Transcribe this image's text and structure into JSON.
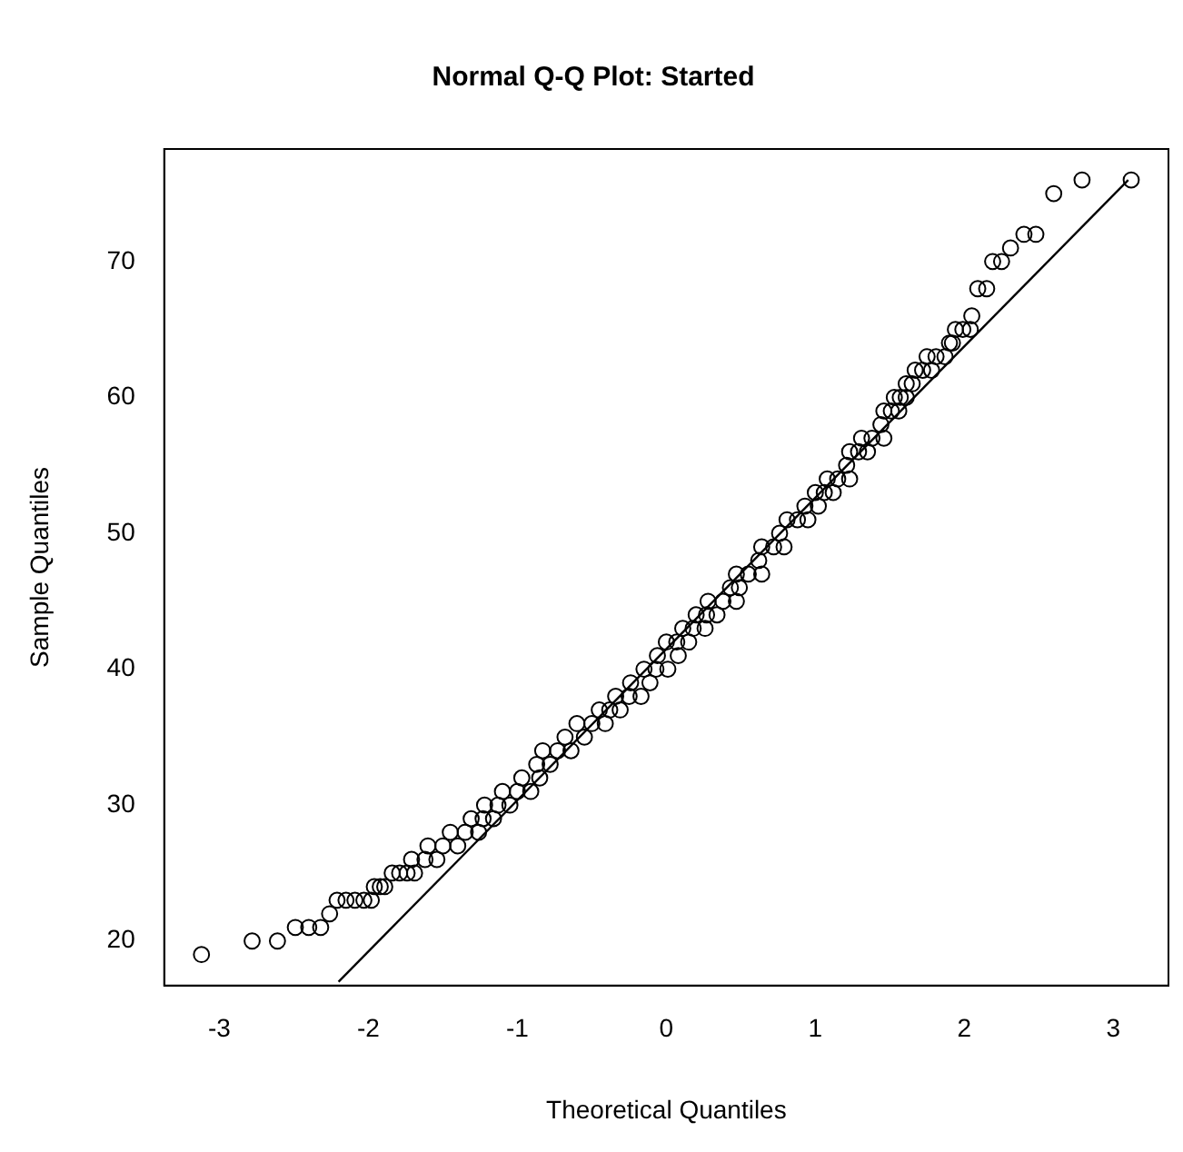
{
  "chart_data": {
    "type": "scatter",
    "title": "Normal Q-Q Plot: Started",
    "xlabel": "Theoretical Quantiles",
    "ylabel": "Sample Quantiles",
    "xlim": [
      -3.37,
      3.37
    ],
    "ylim": [
      16.72,
      78.28
    ],
    "xticks": [
      -3,
      -2,
      -1,
      0,
      1,
      2,
      3
    ],
    "yticks": [
      20,
      30,
      40,
      50,
      60,
      70
    ],
    "grid": false,
    "legend": false,
    "series": [
      {
        "marker": "circle",
        "color": "#000000",
        "x": [
          -3.12,
          -2.78,
          -2.61,
          -2.49,
          -2.4,
          -2.32,
          -2.26,
          -2.21,
          -2.15,
          -2.09,
          -2.03,
          -1.98,
          -1.96,
          -1.92,
          -1.89,
          -1.84,
          -1.79,
          -1.74,
          -1.69,
          -1.71,
          -1.62,
          -1.54,
          -1.6,
          -1.5,
          -1.4,
          -1.45,
          -1.35,
          -1.26,
          -1.31,
          -1.23,
          -1.16,
          -1.22,
          -1.13,
          -1.05,
          -1.1,
          -1.0,
          -0.91,
          -0.97,
          -0.85,
          -0.87,
          -0.78,
          -0.83,
          -0.73,
          -0.64,
          -0.68,
          -0.55,
          -0.6,
          -0.5,
          -0.41,
          -0.45,
          -0.38,
          -0.31,
          -0.34,
          -0.25,
          -0.17,
          -0.24,
          -0.11,
          -0.15,
          -0.07,
          0.01,
          -0.06,
          0.08,
          0.0,
          0.07,
          0.15,
          0.11,
          0.18,
          0.26,
          0.2,
          0.27,
          0.34,
          0.28,
          0.38,
          0.47,
          0.43,
          0.49,
          0.47,
          0.55,
          0.64,
          0.62,
          0.64,
          0.72,
          0.79,
          0.76,
          0.81,
          0.88,
          0.95,
          0.93,
          1.02,
          1.0,
          1.06,
          1.12,
          1.08,
          1.15,
          1.23,
          1.21,
          1.23,
          1.29,
          1.35,
          1.31,
          1.38,
          1.46,
          1.44,
          1.46,
          1.51,
          1.56,
          1.53,
          1.57,
          1.61,
          1.61,
          1.65,
          1.67,
          1.72,
          1.78,
          1.75,
          1.81,
          1.87,
          1.9,
          1.92,
          1.94,
          1.99,
          2.04,
          2.05,
          2.09,
          2.15,
          2.19,
          2.25,
          2.31,
          2.4,
          2.48,
          2.6,
          2.79,
          3.12
        ],
        "values": [
          19,
          20,
          20,
          21,
          21,
          21,
          22,
          23,
          23,
          23,
          23,
          23,
          24,
          24,
          24,
          25,
          25,
          25,
          25,
          26,
          26,
          26,
          27,
          27,
          27,
          28,
          28,
          28,
          29,
          29,
          29,
          30,
          30,
          30,
          31,
          31,
          31,
          32,
          32,
          33,
          33,
          34,
          34,
          34,
          35,
          35,
          36,
          36,
          36,
          37,
          37,
          37,
          38,
          38,
          38,
          39,
          39,
          40,
          40,
          40,
          41,
          41,
          42,
          42,
          42,
          43,
          43,
          43,
          44,
          44,
          44,
          45,
          45,
          45,
          46,
          46,
          47,
          47,
          47,
          48,
          49,
          49,
          49,
          50,
          51,
          51,
          51,
          52,
          52,
          53,
          53,
          53,
          54,
          54,
          54,
          55,
          56,
          56,
          56,
          57,
          57,
          57,
          58,
          59,
          59,
          59,
          60,
          60,
          60,
          61,
          61,
          62,
          62,
          62,
          63,
          63,
          63,
          64,
          64,
          65,
          65,
          65,
          66,
          68,
          68,
          70,
          70,
          71,
          72,
          72,
          75,
          76,
          76
        ]
      },
      {
        "type": "line",
        "marker": "none",
        "color": "#000000",
        "x": [
          -2.2,
          3.1
        ],
        "values": [
          17.0,
          76.0
        ]
      }
    ]
  }
}
